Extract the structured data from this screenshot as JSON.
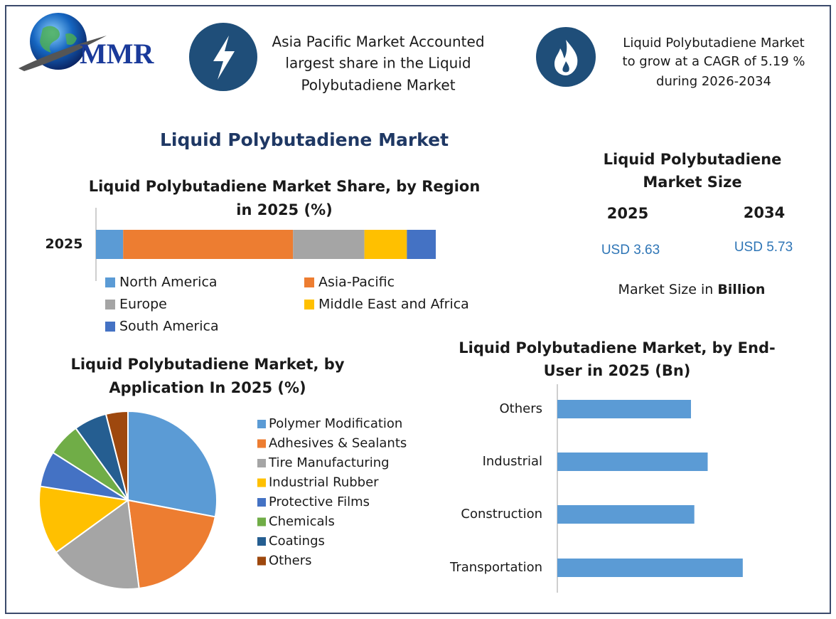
{
  "logo": "MMR",
  "header": {
    "left_text": [
      "Asia Pacific Market Accounted",
      "largest share in the Liquid",
      "Polybutadiene Market"
    ],
    "right_text": [
      "Liquid Polybutadiene Market",
      "to grow at a CAGR of 5.19 %",
      "during 2026-2034"
    ]
  },
  "main_title": "Liquid Polybutadiene Market",
  "market_size": {
    "title": [
      "Liquid Polybutadiene",
      "Market Size"
    ],
    "years": [
      "2025",
      "2034"
    ],
    "values": [
      "USD 3.63",
      "USD 5.73"
    ],
    "note": [
      "Market Size in ",
      "Billion"
    ]
  },
  "chart_data": [
    {
      "type": "bar",
      "stacked": true,
      "orientation": "horizontal",
      "title": [
        "Liquid Polybutadiene Market Share, by Region",
        "in 2025 (%)"
      ],
      "categories": [
        "2025"
      ],
      "xlim": [
        0,
        100
      ],
      "series": [
        {
          "name": "North America",
          "color": "#5b9bd5",
          "values": [
            8
          ]
        },
        {
          "name": "Asia-Pacific",
          "color": "#ed7d31",
          "values": [
            50
          ]
        },
        {
          "name": "Europe",
          "color": "#a5a5a5",
          "values": [
            21
          ]
        },
        {
          "name": "Middle East and Africa",
          "color": "#ffc000",
          "values": [
            12.5
          ]
        },
        {
          "name": "South America",
          "color": "#4472c4",
          "values": [
            8.5
          ]
        }
      ]
    },
    {
      "type": "pie",
      "title": [
        "Liquid Polybutadiene Market, by",
        "Application In 2025 (%)"
      ],
      "categories": [
        "Polymer Modification",
        "Adhesives & Sealants",
        "Tire Manufacturing",
        "Industrial Rubber",
        "Protective Films",
        "Chemicals",
        "Coatings",
        "Others"
      ],
      "values": [
        28,
        20,
        17,
        12.5,
        6.5,
        6,
        6,
        4
      ],
      "colors": [
        "#5b9bd5",
        "#ed7d31",
        "#a5a5a5",
        "#ffc000",
        "#4472c4",
        "#70ad47",
        "#255e91",
        "#9e480e"
      ]
    },
    {
      "type": "bar",
      "stacked": false,
      "orientation": "horizontal",
      "title": [
        "Liquid Polybutadiene Market, by End-",
        "User in 2025 (Bn)"
      ],
      "categories": [
        "Others",
        "Industrial",
        "Construction",
        "Transportation"
      ],
      "values": [
        0.8,
        0.9,
        0.82,
        1.11
      ],
      "color": "#5b9bd5",
      "xlim": [
        0,
        1.6
      ]
    }
  ]
}
